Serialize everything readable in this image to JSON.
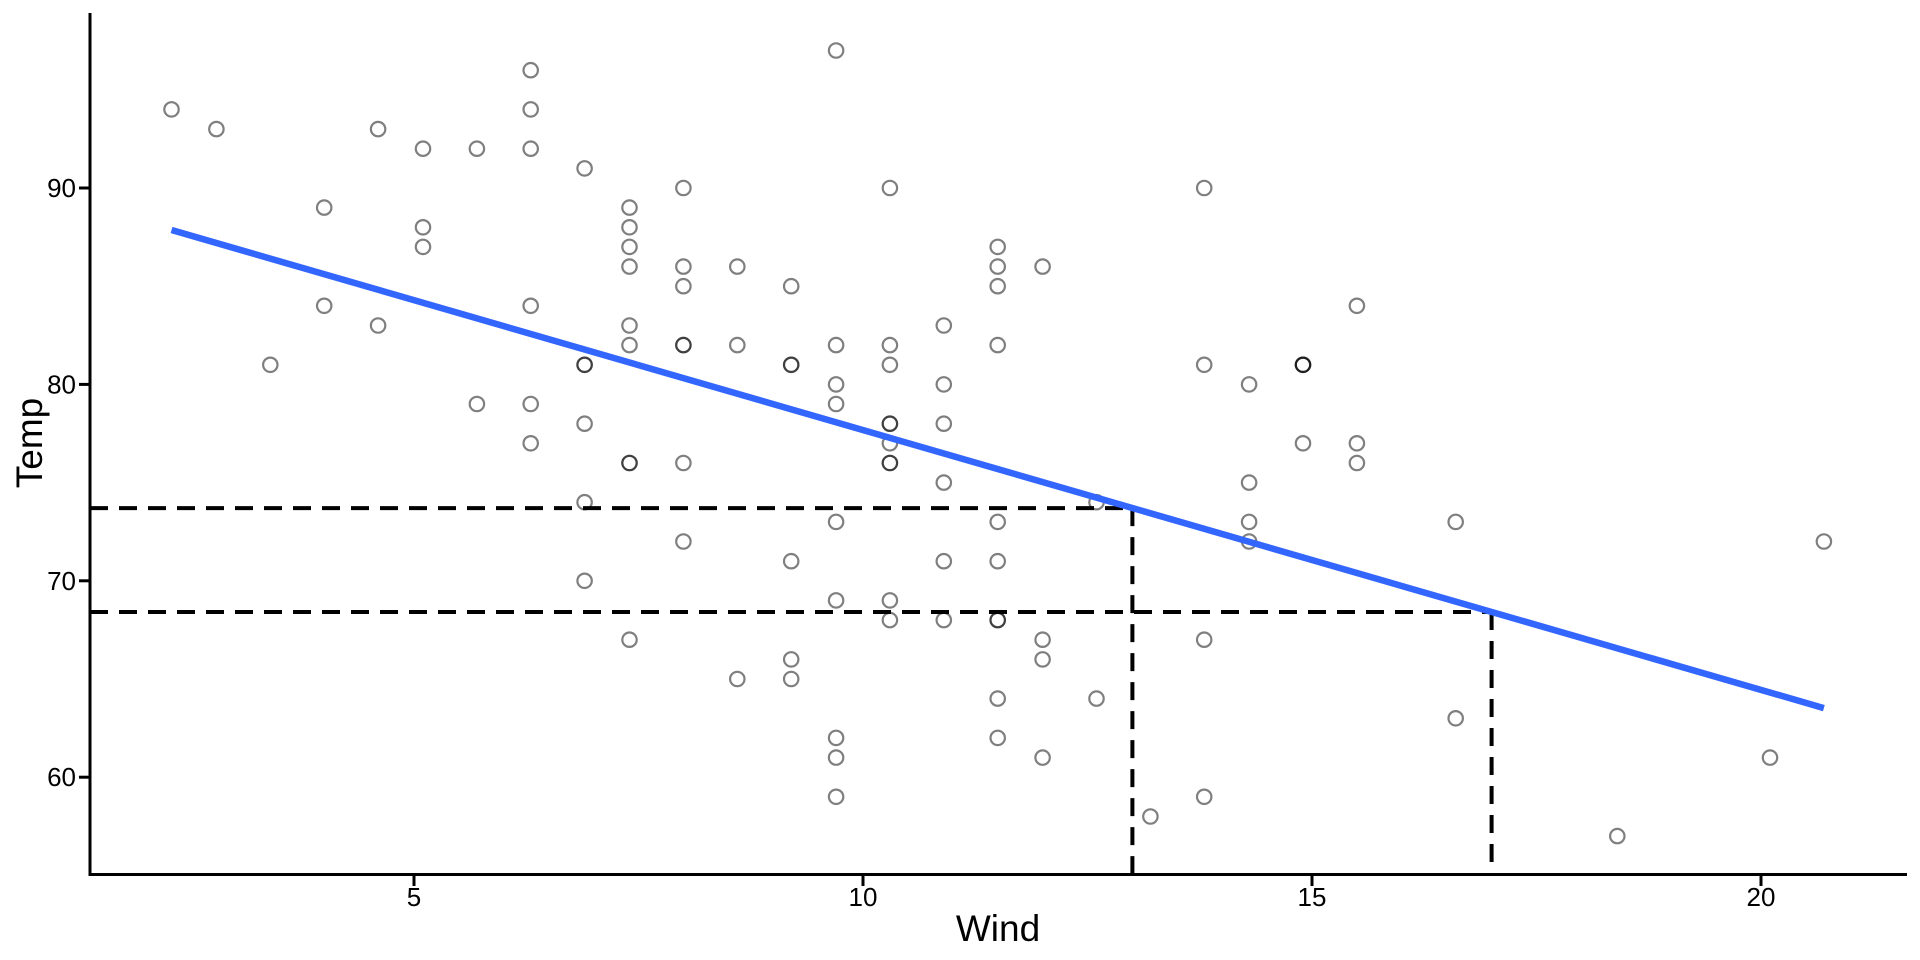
{
  "chart_data": {
    "type": "scatter",
    "title": "",
    "xlabel": "Wind",
    "ylabel": "Temp",
    "x_ticks": [
      5,
      10,
      15,
      20
    ],
    "y_ticks": [
      60,
      70,
      80,
      90
    ],
    "x_panel_range": [
      1.39,
      21.64
    ],
    "y_panel_range": [
      55.0,
      98.9
    ],
    "grid": "off",
    "legend": "none",
    "points": [
      [
        7.4,
        67
      ],
      [
        8.0,
        72
      ],
      [
        12.6,
        74
      ],
      [
        11.5,
        62
      ],
      [
        8.6,
        65
      ],
      [
        13.8,
        59
      ],
      [
        20.1,
        61
      ],
      [
        9.7,
        69
      ],
      [
        9.2,
        66
      ],
      [
        10.9,
        68
      ],
      [
        13.2,
        58
      ],
      [
        11.5,
        64
      ],
      [
        12.0,
        66
      ],
      [
        18.4,
        57
      ],
      [
        11.5,
        68
      ],
      [
        9.7,
        62
      ],
      [
        9.7,
        59
      ],
      [
        16.6,
        73
      ],
      [
        9.7,
        61
      ],
      [
        12.0,
        61
      ],
      [
        12.0,
        67
      ],
      [
        14.9,
        81
      ],
      [
        5.7,
        79
      ],
      [
        7.4,
        76
      ],
      [
        9.7,
        82
      ],
      [
        13.8,
        90
      ],
      [
        11.5,
        87
      ],
      [
        8.0,
        82
      ],
      [
        14.9,
        77
      ],
      [
        20.7,
        72
      ],
      [
        9.2,
        65
      ],
      [
        11.5,
        73
      ],
      [
        10.3,
        76
      ],
      [
        4.0,
        84
      ],
      [
        9.2,
        85
      ],
      [
        9.2,
        81
      ],
      [
        4.6,
        83
      ],
      [
        10.9,
        83
      ],
      [
        5.1,
        88
      ],
      [
        6.3,
        92
      ],
      [
        5.7,
        92
      ],
      [
        7.4,
        89
      ],
      [
        14.3,
        73
      ],
      [
        14.9,
        81
      ],
      [
        14.3,
        80
      ],
      [
        6.9,
        81
      ],
      [
        10.3,
        82
      ],
      [
        6.3,
        84
      ],
      [
        5.1,
        87
      ],
      [
        11.5,
        85
      ],
      [
        6.9,
        74
      ],
      [
        8.6,
        86
      ],
      [
        8.0,
        85
      ],
      [
        8.6,
        82
      ],
      [
        12.0,
        86
      ],
      [
        7.4,
        88
      ],
      [
        7.4,
        86
      ],
      [
        7.4,
        83
      ],
      [
        9.2,
        81
      ],
      [
        6.9,
        81
      ],
      [
        13.8,
        81
      ],
      [
        7.4,
        82
      ],
      [
        4.0,
        89
      ],
      [
        10.3,
        90
      ],
      [
        8.0,
        90
      ],
      [
        11.5,
        86
      ],
      [
        11.5,
        82
      ],
      [
        9.7,
        80
      ],
      [
        10.3,
        77
      ],
      [
        6.3,
        79
      ],
      [
        7.4,
        76
      ],
      [
        10.9,
        78
      ],
      [
        10.3,
        78
      ],
      [
        15.5,
        77
      ],
      [
        14.3,
        72
      ],
      [
        9.7,
        79
      ],
      [
        3.4,
        81
      ],
      [
        8.0,
        86
      ],
      [
        9.7,
        97
      ],
      [
        2.3,
        94
      ],
      [
        6.3,
        96
      ],
      [
        6.3,
        94
      ],
      [
        6.9,
        91
      ],
      [
        5.1,
        92
      ],
      [
        2.8,
        93
      ],
      [
        4.6,
        93
      ],
      [
        7.4,
        87
      ],
      [
        15.5,
        84
      ],
      [
        10.9,
        80
      ],
      [
        10.3,
        78
      ],
      [
        10.9,
        75
      ],
      [
        9.7,
        73
      ],
      [
        14.9,
        81
      ],
      [
        15.5,
        76
      ],
      [
        6.3,
        77
      ],
      [
        10.9,
        71
      ],
      [
        11.5,
        71
      ],
      [
        6.9,
        78
      ],
      [
        13.8,
        67
      ],
      [
        10.3,
        76
      ],
      [
        10.3,
        68
      ],
      [
        8.0,
        82
      ],
      [
        12.6,
        64
      ],
      [
        9.2,
        71
      ],
      [
        10.3,
        81
      ],
      [
        10.3,
        69
      ],
      [
        16.6,
        63
      ],
      [
        6.9,
        70
      ],
      [
        14.3,
        75
      ],
      [
        8.0,
        76
      ],
      [
        11.5,
        68
      ]
    ],
    "regression_line": {
      "x_start": 2.3,
      "y_start": 87.86,
      "x_end": 20.7,
      "y_end": 63.52,
      "color": "#3366FF",
      "slope": -1.323,
      "intercept": 90.9
    },
    "dashed_guides": [
      {
        "wind": 13,
        "temp": 73.7
      },
      {
        "wind": 17,
        "temp": 68.41
      }
    ],
    "style": {
      "point_stroke": "#000000",
      "point_opacity": 0.5,
      "guide_color": "#000000",
      "axis_color": "#000000",
      "background": "#ffffff"
    }
  }
}
